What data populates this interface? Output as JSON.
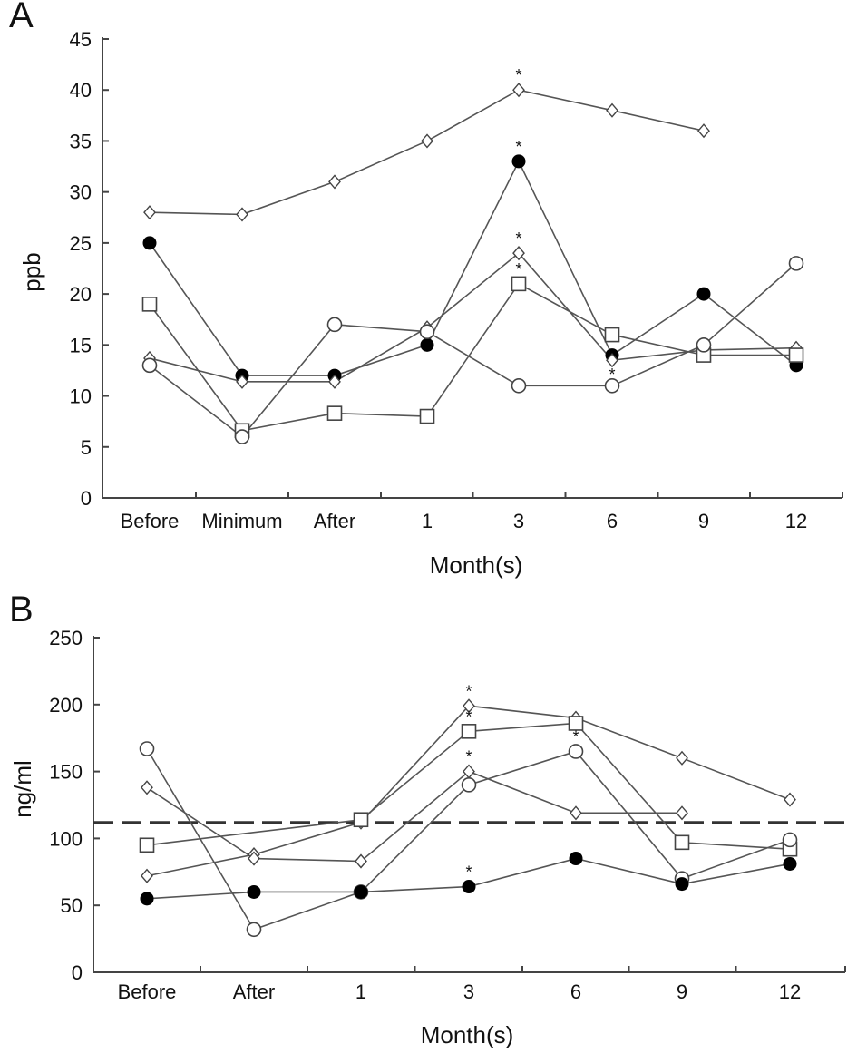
{
  "chart_data": [
    {
      "type": "line",
      "panel_label": "A",
      "ylabel": "ppb",
      "xlabel": "Month(s)",
      "categories": [
        "Before",
        "Minimum",
        "After",
        "1",
        "3",
        "6",
        "9",
        "12"
      ],
      "ylim": [
        0,
        45
      ],
      "yticks": [
        0,
        5,
        10,
        15,
        20,
        25,
        30,
        35,
        40,
        45
      ],
      "grid": false,
      "series": [
        {
          "marker": "diamond-open",
          "values": [
            28,
            27.8,
            31,
            35,
            40,
            38,
            36,
            null
          ],
          "stars": [
            4
          ]
        },
        {
          "marker": "circle-filled",
          "values": [
            25,
            12,
            12,
            15,
            33,
            14,
            20,
            13
          ],
          "stars": [
            4
          ]
        },
        {
          "marker": "diamond-open",
          "values": [
            13.7,
            11.4,
            11.4,
            16.7,
            24,
            13.5,
            14.5,
            14.7
          ],
          "stars": [
            4,
            5
          ]
        },
        {
          "marker": "square-open",
          "values": [
            19,
            6.6,
            8.3,
            8,
            21,
            16,
            14,
            14
          ],
          "stars": [
            4
          ]
        },
        {
          "marker": "circle-open",
          "values": [
            13,
            6,
            17,
            16.3,
            11,
            11,
            15,
            23
          ],
          "stars": []
        }
      ]
    },
    {
      "type": "line",
      "panel_label": "B",
      "ylabel": "ng/ml",
      "xlabel": "Month(s)",
      "categories": [
        "Before",
        "After",
        "1",
        "3",
        "6",
        "9",
        "12"
      ],
      "ylim": [
        0,
        250
      ],
      "yticks": [
        0,
        50,
        100,
        150,
        200,
        250
      ],
      "grid": false,
      "reference_line": 112,
      "series": [
        {
          "marker": "diamond-open",
          "values": [
            72,
            88,
            112,
            199,
            190,
            160,
            129
          ],
          "stars": [
            3
          ]
        },
        {
          "marker": "square-open",
          "values": [
            95,
            null,
            114,
            180,
            186,
            97,
            92
          ],
          "stars": [
            3
          ]
        },
        {
          "marker": "diamond-open",
          "values": [
            138,
            85,
            83,
            150,
            119,
            119,
            null
          ],
          "stars": [
            3
          ]
        },
        {
          "marker": "circle-open",
          "values": [
            167,
            32,
            60,
            140,
            165,
            70,
            99
          ],
          "stars": [
            4
          ]
        },
        {
          "marker": "circle-filled",
          "values": [
            55,
            60,
            60,
            64,
            85,
            66,
            81
          ],
          "stars": [
            3
          ]
        }
      ]
    }
  ]
}
